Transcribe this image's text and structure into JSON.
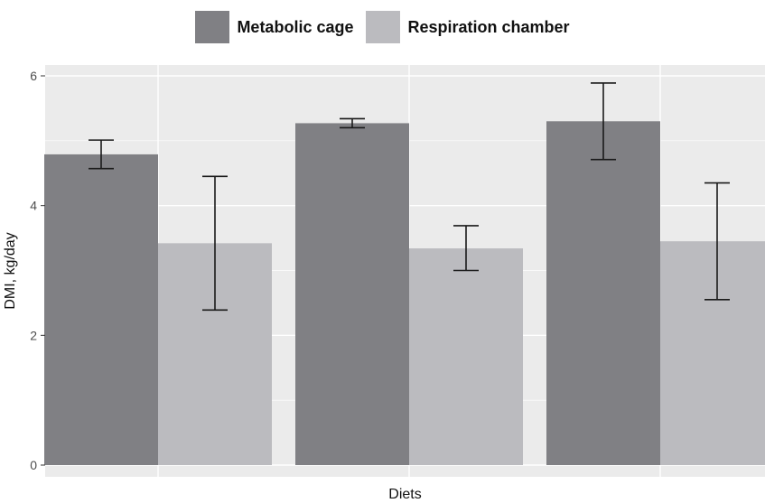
{
  "chart_data": {
    "type": "bar",
    "title": "",
    "xlabel": "Diets",
    "ylabel": "DMI, kg/day",
    "categories": [
      "",
      "",
      ""
    ],
    "ylim": [
      0,
      6.2
    ],
    "yticks": [
      "0",
      "2",
      "4",
      "6"
    ],
    "grid": true,
    "legend_position": "top-center",
    "series": [
      {
        "name": "Metabolic cage",
        "color": "#808084",
        "values": [
          4.79,
          5.27,
          5.3
        ],
        "err_low": [
          4.57,
          5.2,
          4.71
        ],
        "err_high": [
          5.01,
          5.34,
          5.89
        ]
      },
      {
        "name": "Respiration chamber",
        "color": "#bbbbbf",
        "values": [
          3.42,
          3.34,
          3.45
        ],
        "err_low": [
          2.39,
          3.0,
          2.55
        ],
        "err_high": [
          4.45,
          3.69,
          4.35
        ]
      }
    ]
  }
}
